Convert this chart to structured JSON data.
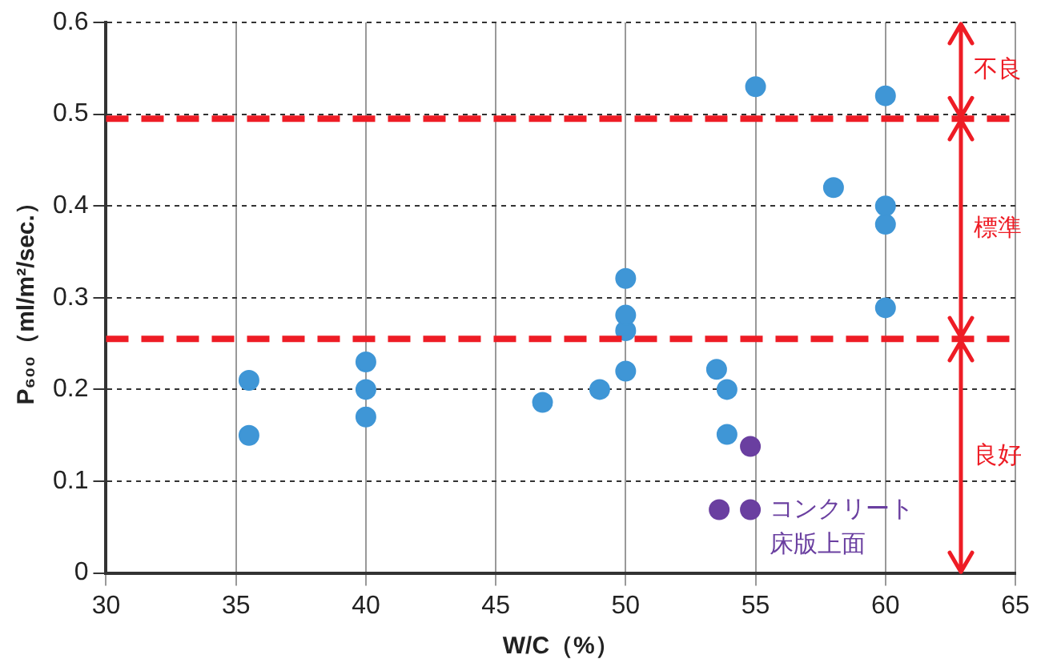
{
  "chart_data": {
    "type": "scatter",
    "xlabel": "W/C（%）",
    "ylabel": "P₆₀₀（ml/m²/sec.）",
    "xlim": [
      30,
      65
    ],
    "xticks": [
      30,
      35,
      40,
      45,
      50,
      55,
      60,
      65
    ],
    "ylim": [
      0,
      0.6
    ],
    "yticks": [
      0,
      0.1,
      0.2,
      0.3,
      0.4,
      0.5,
      0.6
    ],
    "grid": true,
    "legend": false,
    "marker": "circle",
    "series": [
      {
        "color": "#3f96d6",
        "x": [
          35.5,
          35.5,
          40,
          40,
          40,
          46.8,
          49,
          50,
          50,
          50,
          50,
          53.5,
          53.9,
          53.9,
          55,
          58,
          60,
          60,
          60,
          60
        ],
        "values": [
          0.21,
          0.15,
          0.23,
          0.2,
          0.17,
          0.186,
          0.2,
          0.22,
          0.264,
          0.281,
          0.321,
          0.222,
          0.2,
          0.151,
          0.53,
          0.42,
          0.52,
          0.4,
          0.38,
          0.289
        ]
      },
      {
        "name": "コンクリート床版上面",
        "color": "#6a3fa0",
        "x": [
          54.8,
          53.6,
          54.8
        ],
        "values": [
          0.138,
          0.069,
          0.069
        ]
      }
    ],
    "ref_lines": [
      {
        "axis": "y",
        "value": 0.495,
        "color": "#ee1c25",
        "line_style": "dashed"
      },
      {
        "axis": "y",
        "value": 0.255,
        "color": "#ee1c25",
        "line_style": "dashed"
      }
    ],
    "annotations": [
      "不良",
      "標準",
      "良好"
    ]
  }
}
